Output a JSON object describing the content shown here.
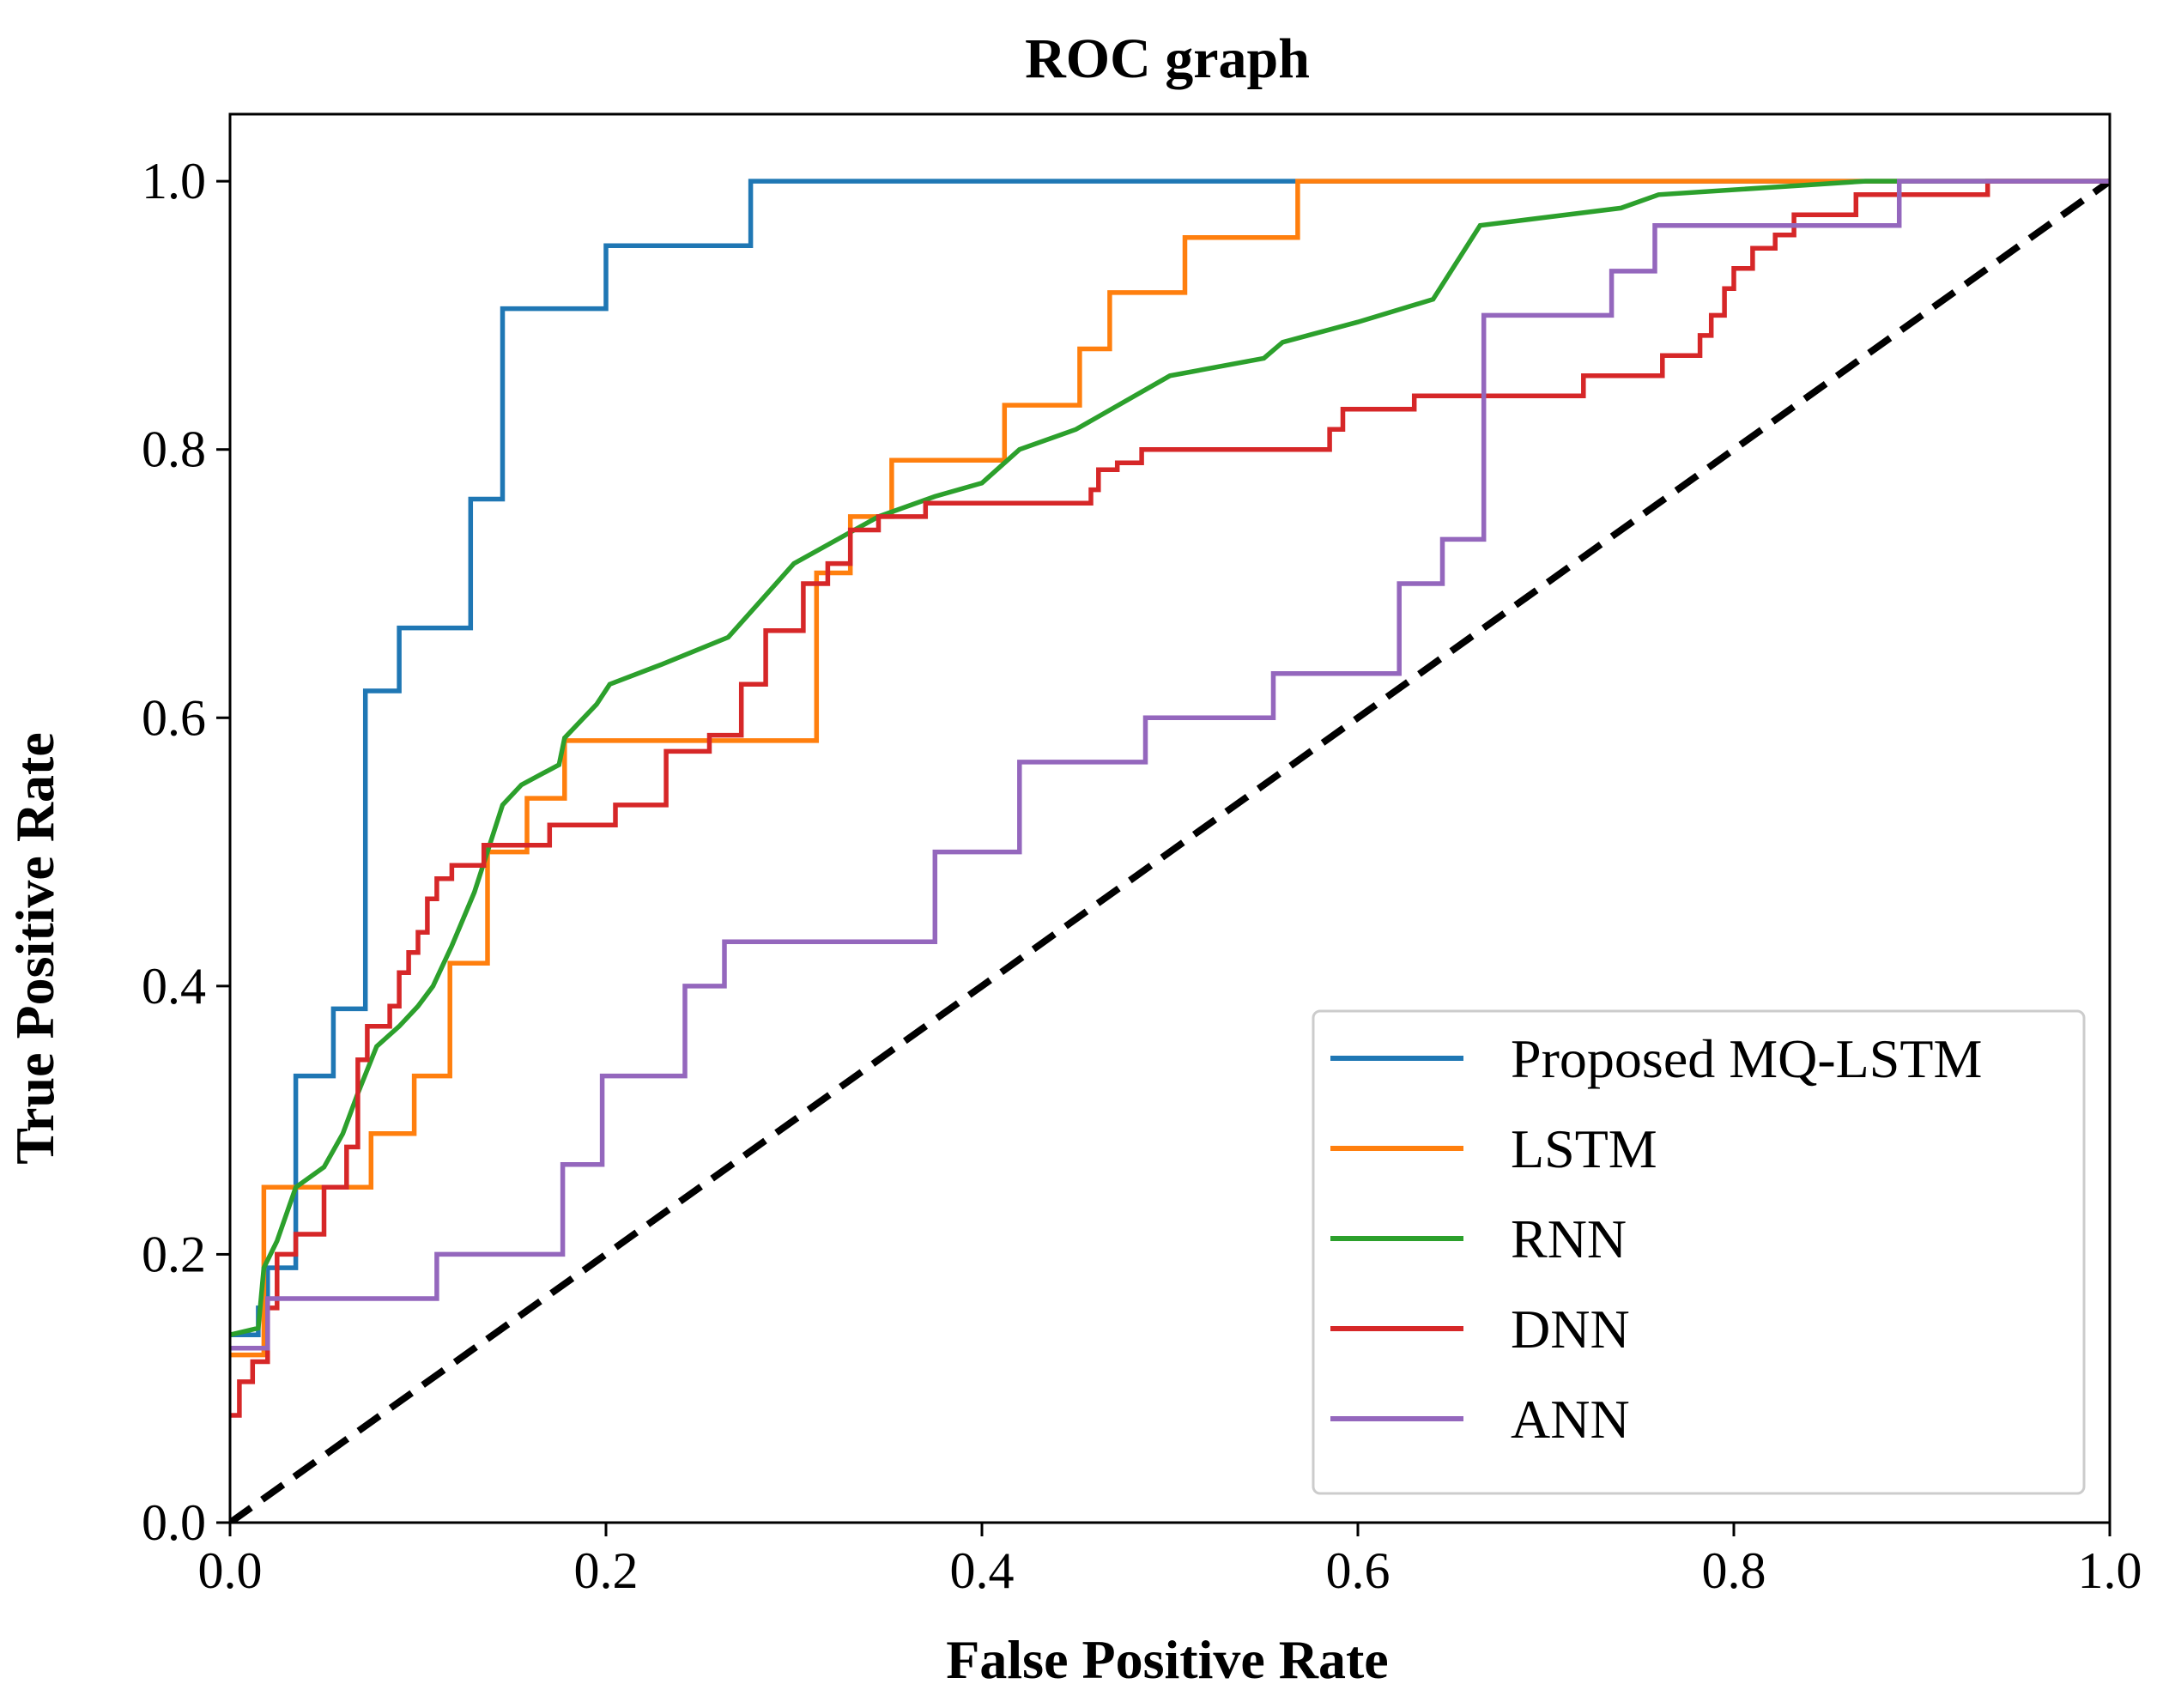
{
  "chart_data": {
    "type": "line",
    "title": "ROC graph",
    "xlabel": "False Positive Rate",
    "ylabel": "True Positive Rate",
    "xlim": [
      0,
      1
    ],
    "ylim": [
      0,
      1.05
    ],
    "grid": false,
    "legend_position": "bottom-right",
    "xticks": [
      0.0,
      0.2,
      0.4,
      0.6,
      0.8,
      1.0
    ],
    "yticks": [
      0.0,
      0.2,
      0.4,
      0.6,
      0.8,
      1.0
    ],
    "xtick_labels": [
      "0.0",
      "0.2",
      "0.4",
      "0.6",
      "0.8",
      "1.0"
    ],
    "ytick_labels": [
      "0.0",
      "0.2",
      "0.4",
      "0.6",
      "0.8",
      "1.0"
    ],
    "series": [
      {
        "name": "Proposed MQ-LSTM",
        "color": "#1f77b4",
        "style": "step",
        "points": [
          [
            0,
            0.14
          ],
          [
            0.015,
            0.14
          ],
          [
            0.015,
            0.16
          ],
          [
            0.02,
            0.16
          ],
          [
            0.02,
            0.19
          ],
          [
            0.035,
            0.19
          ],
          [
            0.035,
            0.333
          ],
          [
            0.055,
            0.333
          ],
          [
            0.055,
            0.383
          ],
          [
            0.072,
            0.383
          ],
          [
            0.072,
            0.62
          ],
          [
            0.09,
            0.62
          ],
          [
            0.09,
            0.667
          ],
          [
            0.128,
            0.667
          ],
          [
            0.128,
            0.763
          ],
          [
            0.145,
            0.763
          ],
          [
            0.145,
            0.905
          ],
          [
            0.2,
            0.905
          ],
          [
            0.2,
            0.952
          ],
          [
            0.277,
            0.952
          ],
          [
            0.277,
            1.0
          ],
          [
            1.0,
            1.0
          ]
        ]
      },
      {
        "name": "LSTM",
        "color": "#ff7f0e",
        "style": "step",
        "points": [
          [
            0,
            0.125
          ],
          [
            0.018,
            0.125
          ],
          [
            0.018,
            0.25
          ],
          [
            0.075,
            0.25
          ],
          [
            0.075,
            0.29
          ],
          [
            0.098,
            0.29
          ],
          [
            0.098,
            0.333
          ],
          [
            0.117,
            0.333
          ],
          [
            0.117,
            0.417
          ],
          [
            0.137,
            0.417
          ],
          [
            0.137,
            0.5
          ],
          [
            0.158,
            0.5
          ],
          [
            0.158,
            0.54
          ],
          [
            0.178,
            0.54
          ],
          [
            0.178,
            0.583
          ],
          [
            0.312,
            0.583
          ],
          [
            0.312,
            0.708
          ],
          [
            0.33,
            0.708
          ],
          [
            0.33,
            0.75
          ],
          [
            0.352,
            0.75
          ],
          [
            0.352,
            0.792
          ],
          [
            0.412,
            0.792
          ],
          [
            0.412,
            0.833
          ],
          [
            0.452,
            0.833
          ],
          [
            0.452,
            0.875
          ],
          [
            0.468,
            0.875
          ],
          [
            0.468,
            0.917
          ],
          [
            0.508,
            0.917
          ],
          [
            0.508,
            0.958
          ],
          [
            0.568,
            0.958
          ],
          [
            0.568,
            1.0
          ],
          [
            1.0,
            1.0
          ]
        ]
      },
      {
        "name": "RNN",
        "color": "#2ca02c",
        "style": "line",
        "points": [
          [
            0,
            0.14
          ],
          [
            0.015,
            0.145
          ],
          [
            0.018,
            0.19
          ],
          [
            0.025,
            0.21
          ],
          [
            0.035,
            0.25
          ],
          [
            0.05,
            0.265
          ],
          [
            0.06,
            0.29
          ],
          [
            0.068,
            0.32
          ],
          [
            0.078,
            0.355
          ],
          [
            0.09,
            0.37
          ],
          [
            0.1,
            0.385
          ],
          [
            0.108,
            0.4
          ],
          [
            0.118,
            0.43
          ],
          [
            0.13,
            0.47
          ],
          [
            0.145,
            0.535
          ],
          [
            0.155,
            0.55
          ],
          [
            0.175,
            0.565
          ],
          [
            0.178,
            0.585
          ],
          [
            0.195,
            0.61
          ],
          [
            0.202,
            0.625
          ],
          [
            0.23,
            0.64
          ],
          [
            0.265,
            0.66
          ],
          [
            0.3,
            0.715
          ],
          [
            0.345,
            0.75
          ],
          [
            0.375,
            0.765
          ],
          [
            0.4,
            0.775
          ],
          [
            0.42,
            0.8
          ],
          [
            0.45,
            0.815
          ],
          [
            0.5,
            0.855
          ],
          [
            0.55,
            0.868
          ],
          [
            0.56,
            0.88
          ],
          [
            0.6,
            0.895
          ],
          [
            0.64,
            0.912
          ],
          [
            0.665,
            0.967
          ],
          [
            0.74,
            0.98
          ],
          [
            0.76,
            0.99
          ],
          [
            0.87,
            1.0
          ],
          [
            1.0,
            1.0
          ]
        ]
      },
      {
        "name": "DNN",
        "color": "#d62728",
        "style": "step",
        "points": [
          [
            0,
            0.08
          ],
          [
            0.005,
            0.08
          ],
          [
            0.005,
            0.105
          ],
          [
            0.012,
            0.105
          ],
          [
            0.012,
            0.12
          ],
          [
            0.02,
            0.12
          ],
          [
            0.02,
            0.16
          ],
          [
            0.025,
            0.16
          ],
          [
            0.025,
            0.2
          ],
          [
            0.035,
            0.2
          ],
          [
            0.035,
            0.215
          ],
          [
            0.05,
            0.215
          ],
          [
            0.05,
            0.25
          ],
          [
            0.062,
            0.25
          ],
          [
            0.062,
            0.28
          ],
          [
            0.068,
            0.28
          ],
          [
            0.068,
            0.345
          ],
          [
            0.073,
            0.345
          ],
          [
            0.073,
            0.37
          ],
          [
            0.085,
            0.37
          ],
          [
            0.085,
            0.385
          ],
          [
            0.09,
            0.385
          ],
          [
            0.09,
            0.41
          ],
          [
            0.095,
            0.41
          ],
          [
            0.095,
            0.425
          ],
          [
            0.1,
            0.425
          ],
          [
            0.1,
            0.44
          ],
          [
            0.105,
            0.44
          ],
          [
            0.105,
            0.465
          ],
          [
            0.11,
            0.465
          ],
          [
            0.11,
            0.48
          ],
          [
            0.118,
            0.48
          ],
          [
            0.118,
            0.49
          ],
          [
            0.135,
            0.49
          ],
          [
            0.135,
            0.505
          ],
          [
            0.17,
            0.505
          ],
          [
            0.17,
            0.52
          ],
          [
            0.205,
            0.52
          ],
          [
            0.205,
            0.535
          ],
          [
            0.232,
            0.535
          ],
          [
            0.232,
            0.575
          ],
          [
            0.255,
            0.575
          ],
          [
            0.255,
            0.587
          ],
          [
            0.272,
            0.587
          ],
          [
            0.272,
            0.625
          ],
          [
            0.285,
            0.625
          ],
          [
            0.285,
            0.665
          ],
          [
            0.305,
            0.665
          ],
          [
            0.305,
            0.7
          ],
          [
            0.318,
            0.7
          ],
          [
            0.318,
            0.715
          ],
          [
            0.33,
            0.715
          ],
          [
            0.33,
            0.74
          ],
          [
            0.345,
            0.74
          ],
          [
            0.345,
            0.75
          ],
          [
            0.37,
            0.75
          ],
          [
            0.37,
            0.76
          ],
          [
            0.458,
            0.76
          ],
          [
            0.458,
            0.77
          ],
          [
            0.462,
            0.77
          ],
          [
            0.462,
            0.785
          ],
          [
            0.472,
            0.785
          ],
          [
            0.472,
            0.79
          ],
          [
            0.485,
            0.79
          ],
          [
            0.485,
            0.8
          ],
          [
            0.585,
            0.8
          ],
          [
            0.585,
            0.815
          ],
          [
            0.592,
            0.815
          ],
          [
            0.592,
            0.83
          ],
          [
            0.63,
            0.83
          ],
          [
            0.63,
            0.84
          ],
          [
            0.72,
            0.84
          ],
          [
            0.72,
            0.855
          ],
          [
            0.762,
            0.855
          ],
          [
            0.762,
            0.87
          ],
          [
            0.782,
            0.87
          ],
          [
            0.782,
            0.885
          ],
          [
            0.788,
            0.885
          ],
          [
            0.788,
            0.9
          ],
          [
            0.795,
            0.9
          ],
          [
            0.795,
            0.92
          ],
          [
            0.8,
            0.92
          ],
          [
            0.8,
            0.935
          ],
          [
            0.81,
            0.935
          ],
          [
            0.81,
            0.95
          ],
          [
            0.822,
            0.95
          ],
          [
            0.822,
            0.96
          ],
          [
            0.832,
            0.96
          ],
          [
            0.832,
            0.975
          ],
          [
            0.865,
            0.975
          ],
          [
            0.865,
            0.99
          ],
          [
            0.935,
            0.99
          ],
          [
            0.935,
            1.0
          ],
          [
            1.0,
            1.0
          ]
        ]
      },
      {
        "name": "ANN",
        "color": "#9467bd",
        "style": "step",
        "points": [
          [
            0,
            0.13
          ],
          [
            0.02,
            0.13
          ],
          [
            0.02,
            0.167
          ],
          [
            0.11,
            0.167
          ],
          [
            0.11,
            0.2
          ],
          [
            0.177,
            0.2
          ],
          [
            0.177,
            0.267
          ],
          [
            0.198,
            0.267
          ],
          [
            0.198,
            0.333
          ],
          [
            0.242,
            0.333
          ],
          [
            0.242,
            0.4
          ],
          [
            0.263,
            0.4
          ],
          [
            0.263,
            0.433
          ],
          [
            0.375,
            0.433
          ],
          [
            0.375,
            0.5
          ],
          [
            0.42,
            0.5
          ],
          [
            0.42,
            0.567
          ],
          [
            0.487,
            0.567
          ],
          [
            0.487,
            0.6
          ],
          [
            0.555,
            0.6
          ],
          [
            0.555,
            0.633
          ],
          [
            0.622,
            0.633
          ],
          [
            0.622,
            0.7
          ],
          [
            0.645,
            0.7
          ],
          [
            0.645,
            0.733
          ],
          [
            0.667,
            0.733
          ],
          [
            0.667,
            0.9
          ],
          [
            0.735,
            0.9
          ],
          [
            0.735,
            0.933
          ],
          [
            0.758,
            0.933
          ],
          [
            0.758,
            0.967
          ],
          [
            0.888,
            0.967
          ],
          [
            0.888,
            1.0
          ],
          [
            1.0,
            1.0
          ]
        ]
      }
    ],
    "reference_line": {
      "color": "#000000",
      "points": [
        [
          0,
          0
        ],
        [
          1,
          1
        ]
      ]
    }
  }
}
